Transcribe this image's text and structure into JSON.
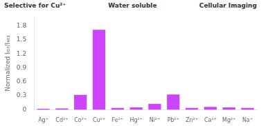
{
  "chart_data": {
    "type": "bar",
    "categories": [
      "Ag⁺",
      "Cd²⁺",
      "Co²⁺",
      "Cu²⁺",
      "Fe²⁺",
      "Hg²⁺",
      "Ni²⁺",
      "Pb²⁺",
      "Zn²⁺",
      "Ca²⁺",
      "Mg²⁺",
      "Na⁺"
    ],
    "values": [
      0.02,
      0.03,
      0.32,
      1.72,
      0.04,
      0.05,
      0.13,
      0.33,
      0.04,
      0.06,
      0.05,
      0.04
    ],
    "color": "#cc44ff",
    "ylabel": "Normalized Iₗ₀₇/I₄₆₁",
    "ylim": [
      0,
      2.0
    ],
    "yticks": [
      0,
      0.3,
      0.6,
      0.9,
      1.2,
      1.5,
      1.8
    ],
    "grid": false,
    "annotations": [
      "Selective for Cu²⁺",
      "Water soluble",
      "Cellular Imaging"
    ]
  }
}
